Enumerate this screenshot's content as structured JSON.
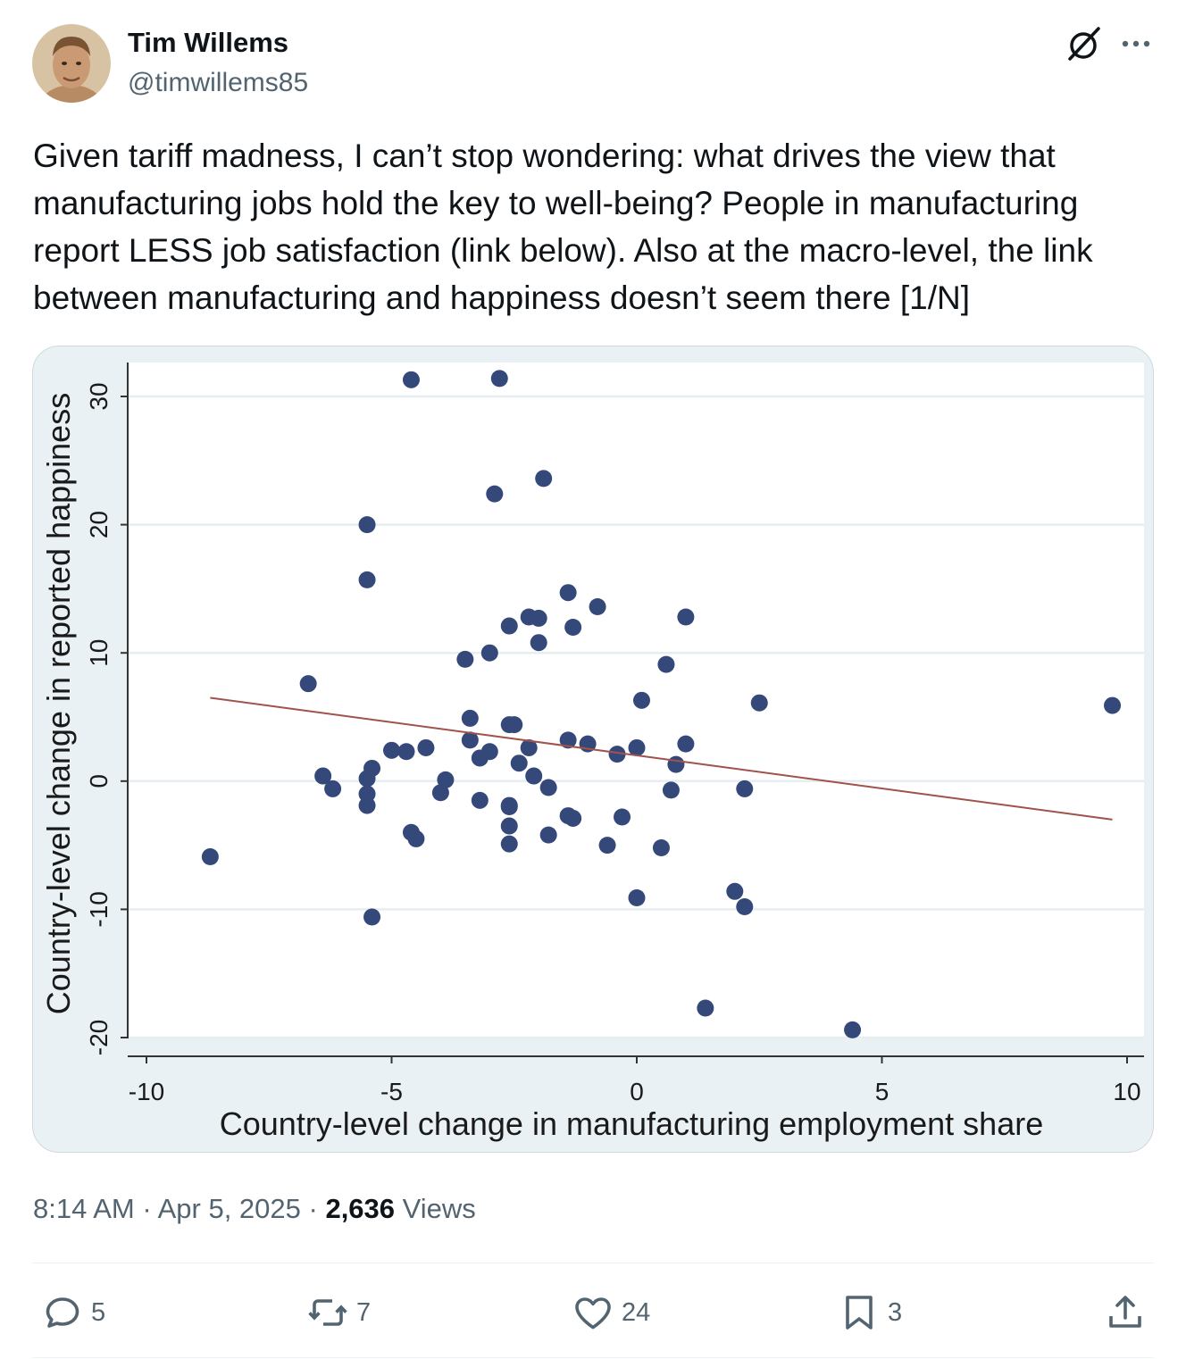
{
  "author": {
    "name": "Tim Willems",
    "handle": "@timwillems85"
  },
  "tweet": {
    "text": "Given tariff madness, I can’t stop wondering: what drives the view that\nmanufacturing jobs hold the key to well-being? People in manufacturing\nreport LESS job satisfaction (link below). Also at the macro-level, the link\nbetween manufacturing and happiness doesn’t seem there [1/N]"
  },
  "meta": {
    "time": "8:14 AM",
    "sep1": " · ",
    "date": "Apr 5, 2025",
    "sep2": " · ",
    "views_count": "2,636",
    "views_label": " Views"
  },
  "actions": {
    "replies": "5",
    "reposts": "7",
    "likes": "24",
    "bookmarks": "3"
  },
  "icons": {
    "header": [
      "grok-icon",
      "more-icon"
    ],
    "actions": [
      "reply-icon",
      "repost-icon",
      "like-icon",
      "bookmark-icon",
      "share-icon"
    ]
  },
  "colors": {
    "accent_text": "#536471",
    "point": "#34497a",
    "fit_line": "#a0524c",
    "plot_bg": "#e9f1f4"
  },
  "chart_data": {
    "type": "scatter",
    "xlabel": "Country-level change in manufacturing employment share",
    "ylabel": "Country-level change in reported happiness",
    "xlim": [
      -10,
      10
    ],
    "ylim": [
      -20,
      30
    ],
    "xticks": [
      -10,
      -5,
      0,
      5,
      10
    ],
    "yticks": [
      -20,
      -10,
      0,
      10,
      20,
      30
    ],
    "grid": "horizontal",
    "points": [
      {
        "x": -4.6,
        "y": 31.3
      },
      {
        "x": -2.8,
        "y": 31.4
      },
      {
        "x": -1.9,
        "y": 23.6
      },
      {
        "x": -2.9,
        "y": 22.4
      },
      {
        "x": -5.5,
        "y": 20.0
      },
      {
        "x": -5.5,
        "y": 15.7
      },
      {
        "x": -1.4,
        "y": 14.7
      },
      {
        "x": -0.8,
        "y": 13.6
      },
      {
        "x": 1.0,
        "y": 12.8
      },
      {
        "x": -2.2,
        "y": 12.8
      },
      {
        "x": -2.0,
        "y": 12.7
      },
      {
        "x": -2.6,
        "y": 12.1
      },
      {
        "x": -1.3,
        "y": 12.0
      },
      {
        "x": -2.0,
        "y": 10.8
      },
      {
        "x": -3.0,
        "y": 10.0
      },
      {
        "x": -3.5,
        "y": 9.5
      },
      {
        "x": 0.6,
        "y": 9.1
      },
      {
        "x": -6.7,
        "y": 7.6
      },
      {
        "x": 0.1,
        "y": 6.3
      },
      {
        "x": 2.5,
        "y": 6.1
      },
      {
        "x": 9.7,
        "y": 5.9
      },
      {
        "x": -3.4,
        "y": 4.9
      },
      {
        "x": -2.6,
        "y": 4.4
      },
      {
        "x": -2.5,
        "y": 4.4
      },
      {
        "x": -3.4,
        "y": 3.2
      },
      {
        "x": -1.4,
        "y": 3.2
      },
      {
        "x": -1.0,
        "y": 2.9
      },
      {
        "x": 1.0,
        "y": 2.9
      },
      {
        "x": -4.3,
        "y": 2.6
      },
      {
        "x": -2.2,
        "y": 2.6
      },
      {
        "x": 0.0,
        "y": 2.6
      },
      {
        "x": -5.0,
        "y": 2.4
      },
      {
        "x": -4.7,
        "y": 2.3
      },
      {
        "x": -3.0,
        "y": 2.3
      },
      {
        "x": -0.4,
        "y": 2.1
      },
      {
        "x": -3.2,
        "y": 1.8
      },
      {
        "x": -2.4,
        "y": 1.4
      },
      {
        "x": 0.8,
        "y": 1.3
      },
      {
        "x": -5.4,
        "y": 1.0
      },
      {
        "x": -6.4,
        "y": 0.4
      },
      {
        "x": -2.1,
        "y": 0.4
      },
      {
        "x": -5.5,
        "y": 0.2
      },
      {
        "x": -3.9,
        "y": 0.1
      },
      {
        "x": -1.8,
        "y": -0.5
      },
      {
        "x": -6.2,
        "y": -0.6
      },
      {
        "x": 2.2,
        "y": -0.6
      },
      {
        "x": 0.7,
        "y": -0.7
      },
      {
        "x": -4.0,
        "y": -0.9
      },
      {
        "x": -5.5,
        "y": -1.0
      },
      {
        "x": -3.2,
        "y": -1.5
      },
      {
        "x": -5.5,
        "y": -1.9
      },
      {
        "x": -2.6,
        "y": -1.9
      },
      {
        "x": -2.6,
        "y": -2.0
      },
      {
        "x": -1.4,
        "y": -2.7
      },
      {
        "x": -1.3,
        "y": -2.9
      },
      {
        "x": -0.3,
        "y": -2.8
      },
      {
        "x": -2.6,
        "y": -3.5
      },
      {
        "x": -4.6,
        "y": -4.0
      },
      {
        "x": -1.8,
        "y": -4.2
      },
      {
        "x": -4.5,
        "y": -4.5
      },
      {
        "x": -2.6,
        "y": -4.9
      },
      {
        "x": -0.6,
        "y": -5.0
      },
      {
        "x": 0.5,
        "y": -5.2
      },
      {
        "x": -8.7,
        "y": -5.9
      },
      {
        "x": 2.0,
        "y": -8.6
      },
      {
        "x": 0.0,
        "y": -9.1
      },
      {
        "x": 2.2,
        "y": -9.8
      },
      {
        "x": -5.4,
        "y": -10.6
      },
      {
        "x": 1.4,
        "y": -17.7
      },
      {
        "x": 4.4,
        "y": -19.4
      }
    ],
    "fit_line": {
      "x1": -8.7,
      "y1": 6.5,
      "x2": 9.7,
      "y2": -3.0
    }
  }
}
